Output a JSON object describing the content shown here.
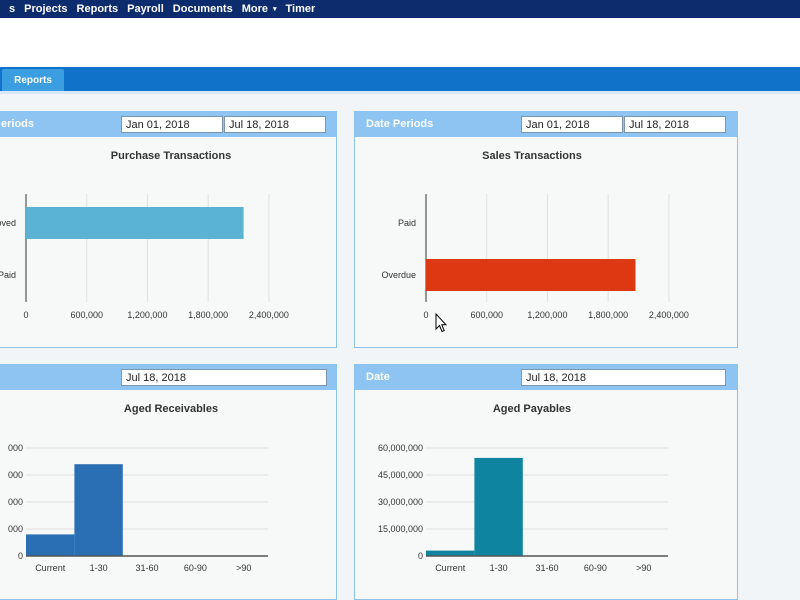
{
  "nav": {
    "edge_char": "s",
    "items": [
      "Projects",
      "Reports",
      "Payroll",
      "Documents",
      "More",
      "Timer"
    ],
    "more_caret": "▾"
  },
  "tabs": {
    "active": "Reports"
  },
  "panels": [
    {
      "id": "purchase",
      "header_label": "eriods",
      "date_from": "Jan 01, 2018",
      "date_to": "Jul 18, 2018",
      "chart_data": {
        "type": "bar",
        "orientation": "horizontal",
        "title": "Purchase Transactions",
        "categories": [
          "roved",
          "Paid"
        ],
        "values": [
          2150000,
          0
        ],
        "xlim": [
          0,
          3000000
        ],
        "tick_values": [
          0,
          600000,
          1200000,
          1800000,
          2400000
        ],
        "tick_labels": [
          "0",
          "600,000",
          "1,200,000",
          "1,800,000",
          "2,400,000"
        ],
        "grid": true,
        "colors": [
          "#5bb3d4",
          "#5bb3d4"
        ]
      }
    },
    {
      "id": "sales",
      "header_label": "Date Periods",
      "date_from": "Jan 01, 2018",
      "date_to": "Jul 18, 2018",
      "chart_data": {
        "type": "bar",
        "orientation": "horizontal",
        "title": "Sales Transactions",
        "categories": [
          "Paid",
          "Overdue"
        ],
        "values": [
          0,
          2070000
        ],
        "xlim": [
          0,
          3000000
        ],
        "tick_values": [
          0,
          600000,
          1200000,
          1800000,
          2400000
        ],
        "tick_labels": [
          "0",
          "600,000",
          "1,200,000",
          "1,800,000",
          "2,400,000"
        ],
        "grid": true,
        "colors": [
          "#dc3912",
          "#dc3912"
        ]
      }
    },
    {
      "id": "receivables",
      "header_label": "",
      "date": "Jul 18, 2018",
      "chart_data": {
        "type": "bar",
        "title": "Aged Receivables",
        "categories": [
          "Current",
          "1-30",
          "31-60",
          "60-90",
          ">90"
        ],
        "tick_values": [
          0,
          1,
          2,
          3,
          4
        ],
        "tick_labels": [
          "0",
          "000",
          "000",
          "000",
          "000"
        ],
        "values": [
          0.8,
          3.4,
          0,
          0,
          0
        ],
        "ylim": [
          0,
          4
        ],
        "grid": true,
        "color": "#2a6fb3"
      }
    },
    {
      "id": "payables",
      "header_label": "Date",
      "date": "Jul 18, 2018",
      "chart_data": {
        "type": "bar",
        "title": "Aged Payables",
        "categories": [
          "Current",
          "1-30",
          "31-60",
          "60-90",
          ">90"
        ],
        "tick_values": [
          0,
          15000000,
          30000000,
          45000000,
          60000000
        ],
        "tick_labels": [
          "0",
          "15,000,000",
          "30,000,000",
          "45,000,000",
          "60,000,000"
        ],
        "values": [
          3000000,
          54500000,
          0,
          0,
          0
        ],
        "ylim": [
          0,
          60000000
        ],
        "grid": true,
        "color": "#0f84a0"
      }
    }
  ]
}
